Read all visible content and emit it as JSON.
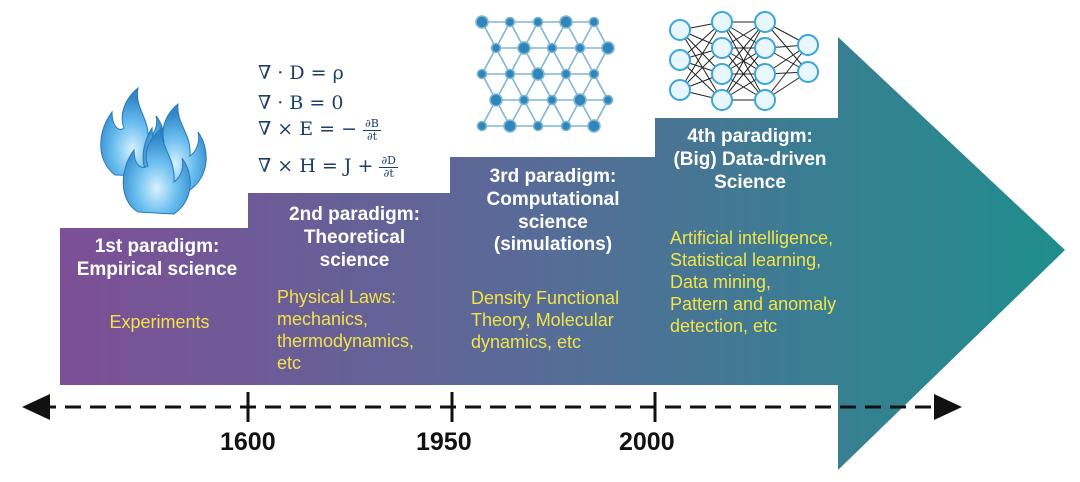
{
  "paradigms": [
    {
      "title_lines": [
        "1st paradigm:",
        "Empirical science"
      ],
      "detail_lines": [
        "Experiments"
      ],
      "icon": "fire-icon"
    },
    {
      "title_lines": [
        "2nd paradigm:",
        "Theoretical",
        "science"
      ],
      "detail_lines": [
        "Physical Laws:",
        "mechanics,",
        "thermodynamics,",
        "etc"
      ],
      "icon": "maxwell-equations"
    },
    {
      "title_lines": [
        "3rd paradigm:",
        "Computational",
        "science",
        "(simulations)"
      ],
      "detail_lines": [
        "Density Functional",
        "Theory, Molecular",
        "dynamics, etc"
      ],
      "icon": "crystal-lattice-icon"
    },
    {
      "title_lines": [
        "4th paradigm:",
        "(Big) Data-driven",
        "Science"
      ],
      "detail_lines": [
        "Artificial intelligence,",
        "Statistical learning,",
        "Data mining,",
        "Pattern and anomaly",
        "detection, etc"
      ],
      "icon": "neural-network-icon"
    }
  ],
  "equations": {
    "eq1_lhs": "∇ · D = ρ",
    "eq2_lhs": "∇ · B = 0",
    "eq3_lhs": "∇ × E = −",
    "eq3_num": "∂B",
    "eq3_den": "∂t",
    "eq4_lhs": "∇ × H = J +",
    "eq4_num": "∂D",
    "eq4_den": "∂t"
  },
  "timeline": {
    "years": [
      "1600",
      "1950",
      "2000"
    ]
  },
  "colors": {
    "arrow_start": "#7d4f96",
    "arrow_end": "#1f8e8c",
    "title_text": "#ffffff",
    "detail_text": "#f2e34a",
    "flame": "#4a9fd8",
    "lattice": "#2f86b8"
  }
}
